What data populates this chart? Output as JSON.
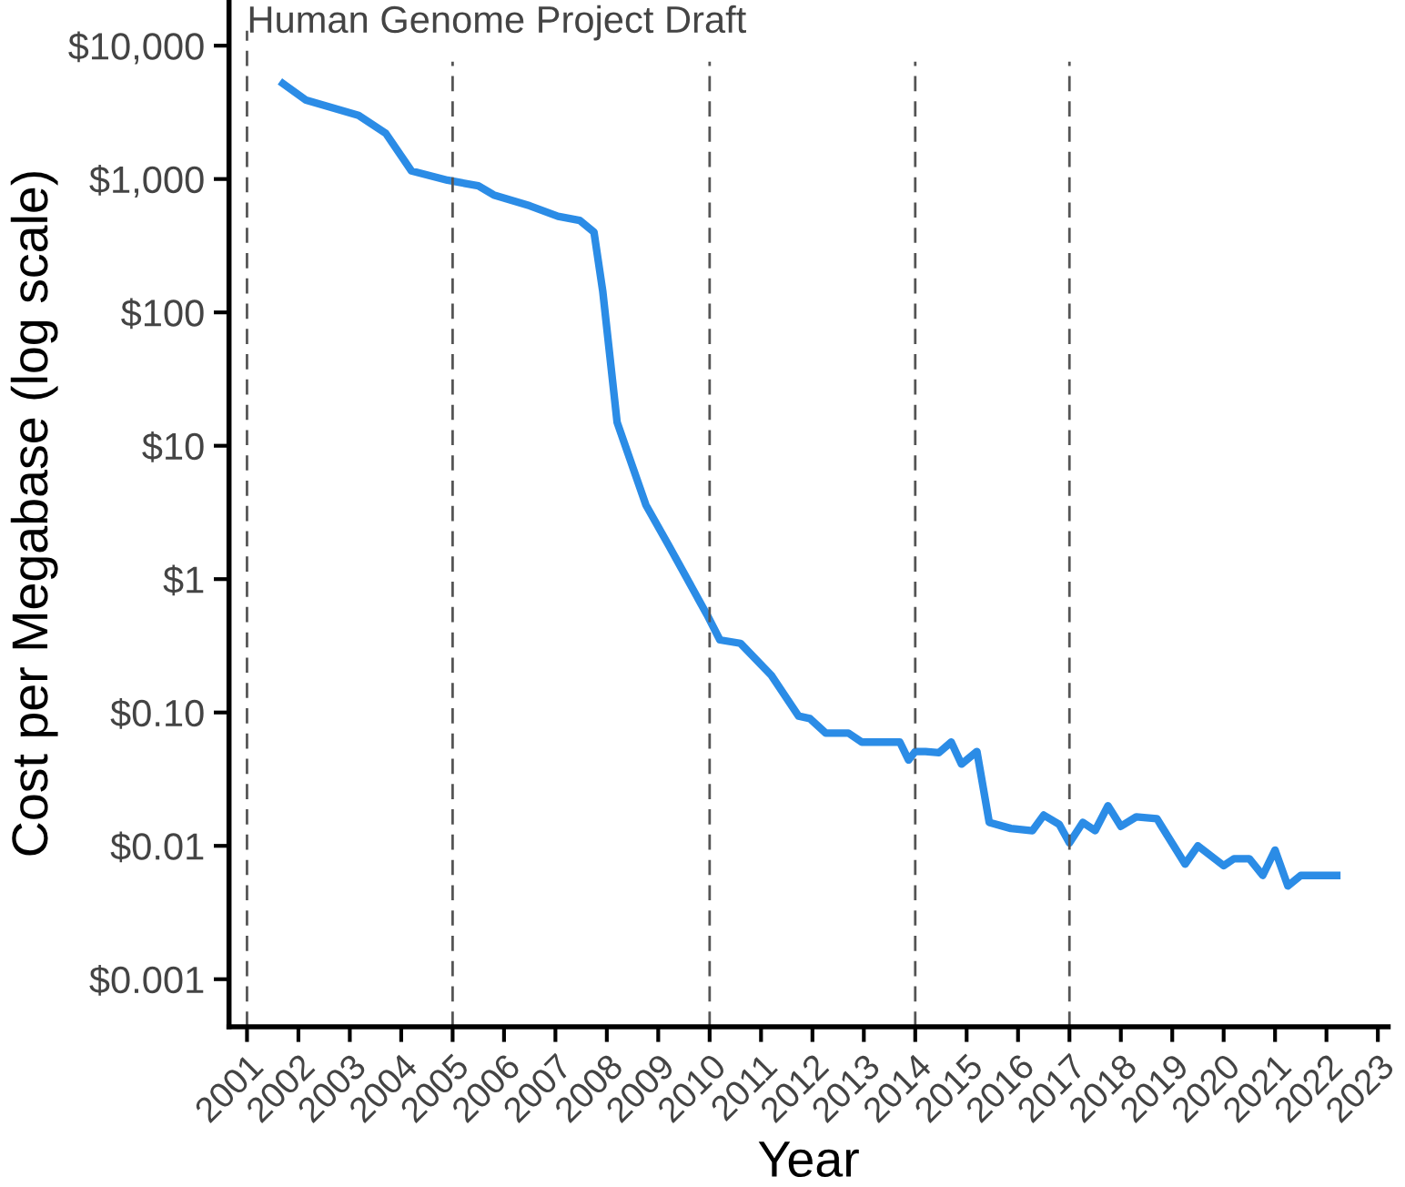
{
  "chart_data": {
    "type": "line",
    "xlabel": "Year",
    "ylabel": "Cost per Megabase (log scale)",
    "log": "y",
    "grid": false,
    "marker": "none",
    "line_style": "solid",
    "series": [
      {
        "color": "#2b8ce6",
        "x": [
          2001.7,
          2002.15,
          2003.17,
          2003.7,
          2004.2,
          2004.9,
          2005.5,
          2005.8,
          2006.5,
          2007.05,
          2007.47,
          2007.75,
          2007.92,
          2008.2,
          2008.76,
          2009.2,
          2009.95,
          2010.2,
          2010.6,
          2011.2,
          2011.73,
          2011.95,
          2012.26,
          2012.7,
          2012.96,
          2013.7,
          2013.87,
          2014.0,
          2014.2,
          2014.46,
          2014.7,
          2014.9,
          2015.2,
          2015.44,
          2015.86,
          2016.28,
          2016.5,
          2016.8,
          2017.0,
          2017.26,
          2017.5,
          2017.75,
          2018.0,
          2018.3,
          2018.7,
          2019.25,
          2019.5,
          2020.0,
          2020.2,
          2020.5,
          2020.76,
          2021.0,
          2021.25,
          2021.5,
          2022.2
        ],
        "values": [
          5200,
          3900,
          3000,
          2200,
          1150,
          980,
          890,
          760,
          630,
          525,
          490,
          400,
          145,
          15,
          3.6,
          1.8,
          0.54,
          0.35,
          0.33,
          0.19,
          0.094,
          0.09,
          0.07,
          0.07,
          0.06,
          0.06,
          0.044,
          0.051,
          0.051,
          0.05,
          0.06,
          0.041,
          0.051,
          0.015,
          0.0135,
          0.013,
          0.017,
          0.0145,
          0.0105,
          0.015,
          0.013,
          0.02,
          0.014,
          0.0165,
          0.016,
          0.0073,
          0.01,
          0.0071,
          0.008,
          0.008,
          0.006,
          0.0093,
          0.005,
          0.006,
          0.006
        ]
      }
    ],
    "ref_lines": [
      {
        "axis": "x",
        "value": 2001,
        "label": "Human Genome Project Draft",
        "color": "#555555",
        "line_style": "dashed"
      },
      {
        "axis": "x",
        "value": 2005,
        "color": "#555555",
        "line_style": "dashed"
      },
      {
        "axis": "x",
        "value": 2010,
        "color": "#555555",
        "line_style": "dashed"
      },
      {
        "axis": "x",
        "value": 2014,
        "color": "#555555",
        "line_style": "dashed"
      },
      {
        "axis": "x",
        "value": 2017,
        "color": "#555555",
        "line_style": "dashed"
      }
    ],
    "xlim": [
      2000.65,
      2023.2
    ],
    "xticks": [
      2001,
      2002,
      2003,
      2004,
      2005,
      2006,
      2007,
      2008,
      2009,
      2010,
      2011,
      2012,
      2013,
      2014,
      2015,
      2016,
      2017,
      2018,
      2019,
      2020,
      2021,
      2022,
      2023
    ],
    "ylim": [
      0.00044,
      22000
    ],
    "yticks": [
      {
        "value": 0.001,
        "label": "$0.001"
      },
      {
        "value": 0.01,
        "label": "$0.01"
      },
      {
        "value": 0.1,
        "label": "$0.10"
      },
      {
        "value": 1,
        "label": "$1"
      },
      {
        "value": 10,
        "label": "$10"
      },
      {
        "value": 100,
        "label": "$100"
      },
      {
        "value": 1000,
        "label": "$1,000"
      },
      {
        "value": 10000,
        "label": "$10,000"
      }
    ]
  }
}
